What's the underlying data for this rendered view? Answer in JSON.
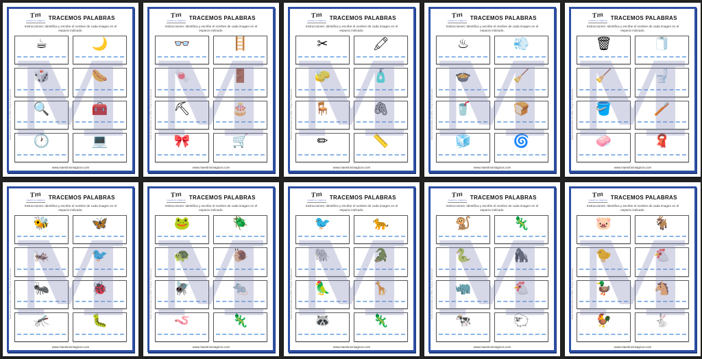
{
  "sheet": {
    "title": "TRACEMOS PALABRAS",
    "instructions": "Instrucciones: Identifica y escribe el nombre de cada imagen en el espacio indicado.",
    "footer": "www.maestrosmagicos.com",
    "side_note": "Material elaborado por Mtra. Tony A. Betancourt",
    "brand_mark": "Tm",
    "brand_text": "maestros mágicos",
    "watermark_letter": "M",
    "colors": {
      "page_background": "#ffffff",
      "canvas_background": "#242424",
      "border_blue": "#2d4fa3",
      "write_line_blue": "#8ab5e6",
      "watermark_purple": "#7b82b5"
    }
  },
  "pages": [
    {
      "items": [
        {
          "icon": "coffee-maker-icon",
          "glyph": "☕"
        },
        {
          "icon": "crescent-moon-icon",
          "glyph": "🌙"
        },
        {
          "icon": "dice-icon",
          "glyph": "🎲"
        },
        {
          "icon": "hot-dog-icon",
          "glyph": "🌭"
        },
        {
          "icon": "magnifying-glass-icon",
          "glyph": "🔍"
        },
        {
          "icon": "treasure-chest-icon",
          "glyph": "🧰"
        },
        {
          "icon": "clock-icon",
          "glyph": "🕐"
        },
        {
          "icon": "laptop-icon",
          "glyph": "💻"
        }
      ]
    },
    {
      "items": [
        {
          "icon": "eyeglasses-icon",
          "glyph": "👓"
        },
        {
          "icon": "ladder-icon",
          "glyph": "🪜"
        },
        {
          "icon": "candy-icon",
          "glyph": "🍬"
        },
        {
          "icon": "door-icon",
          "glyph": "🚪"
        },
        {
          "icon": "shovel-icon",
          "glyph": "⛏"
        },
        {
          "icon": "birthday-cake-icon",
          "glyph": "🎂"
        },
        {
          "icon": "bow-icon",
          "glyph": "🎀"
        },
        {
          "icon": "wheelbarrow-icon",
          "glyph": "🛒"
        }
      ]
    },
    {
      "items": [
        {
          "icon": "scissors-icon",
          "glyph": "✂"
        },
        {
          "icon": "colored-pencils-icon",
          "glyph": "🖍"
        },
        {
          "icon": "eraser-icon",
          "glyph": "🧽"
        },
        {
          "icon": "glue-bottle-icon",
          "glyph": "🧴"
        },
        {
          "icon": "chair-icon",
          "glyph": "🪑"
        },
        {
          "icon": "stapler-icon",
          "glyph": "🖇"
        },
        {
          "icon": "pencil-sharpener-icon",
          "glyph": "✏"
        },
        {
          "icon": "ruler-icon",
          "glyph": "📏"
        }
      ]
    },
    {
      "items": [
        {
          "icon": "clothes-iron-icon",
          "glyph": "♨"
        },
        {
          "icon": "hair-dryer-icon",
          "glyph": "💨"
        },
        {
          "icon": "rice-cooker-icon",
          "glyph": "🍲"
        },
        {
          "icon": "vacuum-cleaner-icon",
          "glyph": "🧹"
        },
        {
          "icon": "blender-icon",
          "glyph": "🥤"
        },
        {
          "icon": "toaster-icon",
          "glyph": "🍞"
        },
        {
          "icon": "refrigerator-icon",
          "glyph": "🧊"
        },
        {
          "icon": "electric-fan-icon",
          "glyph": "🌀"
        }
      ]
    },
    {
      "items": [
        {
          "icon": "trash-can-icon",
          "glyph": "🗑"
        },
        {
          "icon": "toilet-paper-icon",
          "glyph": "🧻"
        },
        {
          "icon": "broom-icon",
          "glyph": "🧹"
        },
        {
          "icon": "toilet-icon",
          "glyph": "🚽"
        },
        {
          "icon": "dustpan-icon",
          "glyph": "🪣"
        },
        {
          "icon": "toothbrush-icon",
          "glyph": "🪥"
        },
        {
          "icon": "soap-bar-icon",
          "glyph": "🧼"
        },
        {
          "icon": "towel-icon",
          "glyph": "🧣"
        }
      ]
    },
    {
      "items": [
        {
          "icon": "bee-icon",
          "glyph": "🐝"
        },
        {
          "icon": "butterfly-icon",
          "glyph": "🦋"
        },
        {
          "icon": "grasshopper-icon",
          "glyph": "🦗"
        },
        {
          "icon": "bird-icon",
          "glyph": "🐦"
        },
        {
          "icon": "ant-icon",
          "glyph": "🐜"
        },
        {
          "icon": "ladybug-icon",
          "glyph": "🐞"
        },
        {
          "icon": "dragonfly-icon",
          "glyph": "🦟"
        },
        {
          "icon": "caterpillar-icon",
          "glyph": "🐛"
        }
      ]
    },
    {
      "items": [
        {
          "icon": "frog-icon",
          "glyph": "🐸"
        },
        {
          "icon": "beetle-icon",
          "glyph": "🪲"
        },
        {
          "icon": "turtle-icon",
          "glyph": "🐢"
        },
        {
          "icon": "snail-icon",
          "glyph": "🐌"
        },
        {
          "icon": "fly-icon",
          "glyph": "🪰"
        },
        {
          "icon": "rat-icon",
          "glyph": "🐀"
        },
        {
          "icon": "worm-icon",
          "glyph": "🪱"
        },
        {
          "icon": "chameleon-icon",
          "glyph": "🦎"
        }
      ]
    },
    {
      "items": [
        {
          "icon": "toucan-icon",
          "glyph": "🐦"
        },
        {
          "icon": "leopard-icon",
          "glyph": "🐆"
        },
        {
          "icon": "elephant-icon",
          "glyph": "🐘"
        },
        {
          "icon": "crocodile-icon",
          "glyph": "🐊"
        },
        {
          "icon": "parrot-icon",
          "glyph": "🦜"
        },
        {
          "icon": "giraffe-icon",
          "glyph": "🦒"
        },
        {
          "icon": "lemur-icon",
          "glyph": "🦝"
        },
        {
          "icon": "gecko-icon",
          "glyph": "🦎"
        }
      ]
    },
    {
      "items": [
        {
          "icon": "monkey-icon",
          "glyph": "🐒"
        },
        {
          "icon": "iguana-icon",
          "glyph": "🦎"
        },
        {
          "icon": "snake-icon",
          "glyph": "🐍"
        },
        {
          "icon": "gorilla-icon",
          "glyph": "🦍"
        },
        {
          "icon": "rhinoceros-icon",
          "glyph": "🦏"
        },
        {
          "icon": "hen-icon",
          "glyph": "🐔"
        },
        {
          "icon": "cow-icon",
          "glyph": "🐄"
        },
        {
          "icon": "sheep-icon",
          "glyph": "🐑"
        }
      ]
    },
    {
      "items": [
        {
          "icon": "pig-icon",
          "glyph": "🐷"
        },
        {
          "icon": "goat-icon",
          "glyph": "🐐"
        },
        {
          "icon": "chicks-icon",
          "glyph": "🐤"
        },
        {
          "icon": "hen-icon",
          "glyph": "🐔"
        },
        {
          "icon": "duck-icon",
          "glyph": "🦆"
        },
        {
          "icon": "horse-icon",
          "glyph": "🐴"
        },
        {
          "icon": "rooster-icon",
          "glyph": "🐓"
        },
        {
          "icon": "rabbit-icon",
          "glyph": "🐇"
        }
      ]
    }
  ]
}
